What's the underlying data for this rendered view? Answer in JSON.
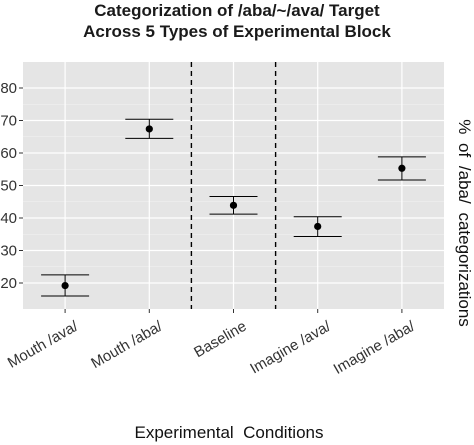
{
  "chart_data": {
    "type": "scatter",
    "title": [
      "Categorization of /aba/~/ava/ Target",
      "Across 5 Types of Experimental Block"
    ],
    "xlabel": "Experimental  Conditions",
    "ylabel": "% of /aba/ categorizations",
    "ylabel_position": "right",
    "ylim": [
      12,
      88
    ],
    "yticks": [
      20,
      30,
      40,
      50,
      60,
      70,
      80
    ],
    "categories": [
      "Mouth /ava/",
      "Mouth /aba/",
      "Baseline",
      "Imagine /ava/",
      "Imagine /aba/"
    ],
    "points": [
      {
        "category": "Mouth /ava/",
        "mean": 19.2,
        "lower": 16.0,
        "upper": 22.5
      },
      {
        "category": "Mouth /aba/",
        "mean": 67.4,
        "lower": 64.5,
        "upper": 70.4
      },
      {
        "category": "Baseline",
        "mean": 43.9,
        "lower": 41.2,
        "upper": 46.6
      },
      {
        "category": "Imagine /ava/",
        "mean": 37.4,
        "lower": 34.3,
        "upper": 40.4
      },
      {
        "category": "Imagine /aba/",
        "mean": 55.3,
        "lower": 51.7,
        "upper": 58.8
      }
    ],
    "separators_after": [
      2,
      3
    ],
    "separator_style": "dashed",
    "grid": true,
    "background": "#e5e5e5",
    "gridline_color": "#ffffff",
    "point_color": "#000000"
  }
}
